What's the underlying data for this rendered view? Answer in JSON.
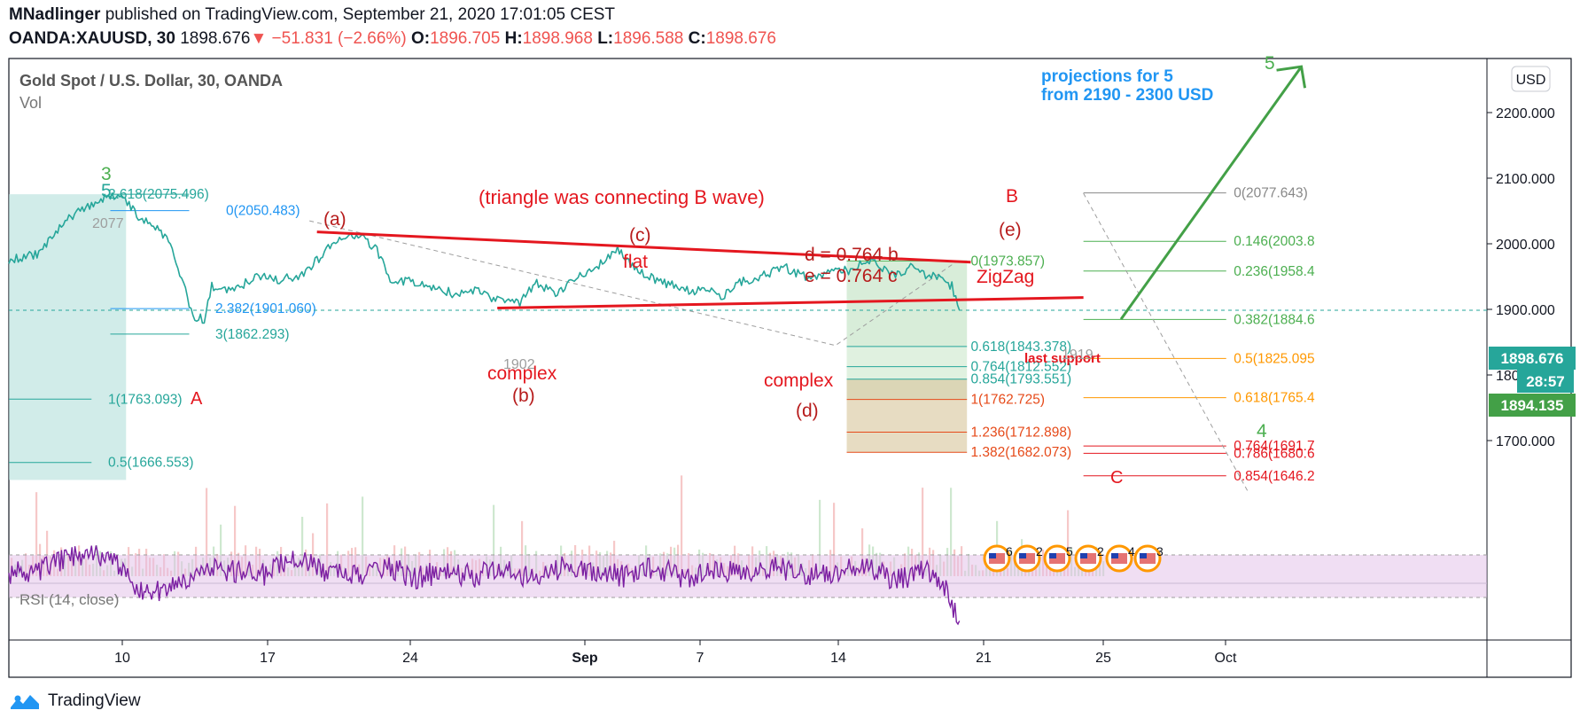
{
  "header": {
    "author": "MNadlinger",
    "published_text": "published on TradingView.com, September 21, 2020 17:01:05 CEST",
    "symbol": "OANDA:XAUUSD, 30",
    "last": "1898.676",
    "change": "−51.831 (−2.66%)",
    "o_label": "O:",
    "o_val": "1896.705",
    "h_label": "H:",
    "h_val": "1898.968",
    "l_label": "L:",
    "l_val": "1896.588",
    "c_label": "C:",
    "c_val": "1898.676"
  },
  "legend": {
    "title": "Gold Spot / U.S. Dollar, 30, OANDA",
    "vol": "Vol",
    "rsi": "RSI (14, close)"
  },
  "currency_button": "USD",
  "price_tags": {
    "current": "1898.676",
    "countdown": "28:57",
    "other": "1894.135"
  },
  "footer": {
    "brand": "TradingView"
  },
  "colors": {
    "red": "#e4171f",
    "green": "#4caf50",
    "teal": "#26a69a",
    "blue": "#2196f3",
    "orange": "#ff9800",
    "rsi": "#7b1fa2"
  },
  "chart_data": {
    "type": "line",
    "title": "Gold Spot / U.S. Dollar, 30, OANDA",
    "x_ticks": [
      "10",
      "17",
      "24",
      "Sep",
      "7",
      "14",
      "21",
      "25",
      "Oct"
    ],
    "y_ticks": [
      2200,
      2100,
      2000,
      1900,
      1800,
      1700
    ],
    "y_tick_labels": [
      "2200.000",
      "2100.000",
      "2000.000",
      "1900.000",
      "1800.000",
      "1700.000"
    ],
    "ylim": [
      1612,
      2290
    ],
    "price": [
      [
        0,
        1975
      ],
      [
        4,
        1985
      ],
      [
        7,
        2030
      ],
      [
        10,
        2055
      ],
      [
        13,
        2070
      ],
      [
        15,
        2076
      ],
      [
        16,
        2060
      ],
      [
        17.5,
        2035
      ],
      [
        19,
        2030
      ],
      [
        21,
        2010
      ],
      [
        23,
        1950
      ],
      [
        24.5,
        1890
      ],
      [
        26,
        1885
      ],
      [
        27,
        1935
      ],
      [
        30,
        1930
      ],
      [
        33,
        1950
      ],
      [
        36,
        1945
      ],
      [
        39,
        1952
      ],
      [
        41,
        1975
      ],
      [
        43,
        2000
      ],
      [
        45,
        2015
      ],
      [
        47,
        2010
      ],
      [
        49,
        1990
      ],
      [
        51,
        1940
      ],
      [
        53,
        1945
      ],
      [
        56,
        1935
      ],
      [
        59,
        1925
      ],
      [
        62,
        1930
      ],
      [
        65,
        1915
      ],
      [
        68,
        1910
      ],
      [
        70,
        1940
      ],
      [
        73,
        1925
      ],
      [
        76,
        1952
      ],
      [
        79,
        1970
      ],
      [
        81,
        1990
      ],
      [
        83,
        1965
      ],
      [
        85,
        1950
      ],
      [
        87,
        1940
      ],
      [
        89,
        1935
      ],
      [
        91,
        1928
      ],
      [
        93,
        1930
      ],
      [
        95,
        1920
      ],
      [
        97,
        1940
      ],
      [
        100,
        1950
      ],
      [
        103,
        1965
      ],
      [
        106,
        1950
      ],
      [
        109,
        1955
      ],
      [
        112,
        1960
      ],
      [
        114,
        1975
      ],
      [
        116,
        1965
      ],
      [
        118,
        1950
      ],
      [
        120,
        1965
      ],
      [
        122,
        1952
      ],
      [
        124,
        1948
      ],
      [
        125.5,
        1935
      ],
      [
        126.5,
        1898.676
      ]
    ],
    "rsi": [
      [
        0,
        52
      ],
      [
        5,
        58
      ],
      [
        10,
        72
      ],
      [
        14,
        62
      ],
      [
        18,
        32
      ],
      [
        22,
        40
      ],
      [
        26,
        60
      ],
      [
        30,
        55
      ],
      [
        34,
        52
      ],
      [
        38,
        70
      ],
      [
        42,
        52
      ],
      [
        46,
        50
      ],
      [
        50,
        60
      ],
      [
        54,
        48
      ],
      [
        58,
        55
      ],
      [
        62,
        50
      ],
      [
        66,
        60
      ],
      [
        70,
        45
      ],
      [
        74,
        60
      ],
      [
        78,
        55
      ],
      [
        82,
        50
      ],
      [
        86,
        58
      ],
      [
        90,
        48
      ],
      [
        94,
        55
      ],
      [
        98,
        52
      ],
      [
        102,
        60
      ],
      [
        106,
        50
      ],
      [
        110,
        55
      ],
      [
        114,
        62
      ],
      [
        118,
        45
      ],
      [
        122,
        55
      ],
      [
        124.5,
        40
      ],
      [
        126.5,
        8
      ]
    ],
    "trendlines": {
      "upper": [
        [
          41,
          2018
        ],
        [
          128,
          1972
        ]
      ],
      "lower": [
        [
          65,
          1902
        ],
        [
          143,
          1918
        ]
      ],
      "projection_arrow": [
        [
          148,
          1885
        ],
        [
          172,
          2270
        ]
      ]
    },
    "fib_left": [
      {
        "label": "2.618(2075.496)",
        "price": 2075.5
      },
      {
        "label": "0(2050.483)",
        "price": 2050.5
      },
      {
        "label": "2.382(1901.060)",
        "price": 1901.1
      },
      {
        "label": "3(1862.293)",
        "price": 1862.3
      },
      {
        "label": "1(1763.093)",
        "price": 1763.1
      },
      {
        "label": "0.5(1666.553)",
        "price": 1666.6
      }
    ],
    "fib_mid": [
      {
        "label": "0(1973.857)",
        "price": 1973.9
      },
      {
        "label": "0.618(1843.378)",
        "price": 1843.4
      },
      {
        "label": "0.764(1812.552)",
        "price": 1812.6
      },
      {
        "label": "0.854(1793.551)",
        "price": 1793.6
      },
      {
        "label": "1(1762.725)",
        "price": 1762.7
      },
      {
        "label": "1.236(1712.898)",
        "price": 1712.9
      },
      {
        "label": "1.382(1682.073)",
        "price": 1682.1
      }
    ],
    "fib_right": [
      {
        "label": "0(2077.643)",
        "price": 2077.6
      },
      {
        "label": "0.146(2003.8",
        "price": 2003.8
      },
      {
        "label": "0.236(1958.4",
        "price": 1958.4
      },
      {
        "label": "0.382(1884.6",
        "price": 1884.6
      },
      {
        "label": "0.5(1825.095",
        "price": 1825.1
      },
      {
        "label": "0.618(1765.4",
        "price": 1765.4
      },
      {
        "label": "0.764(1691.7",
        "price": 1691.7
      },
      {
        "label": "0.786(1680.6",
        "price": 1680.6
      },
      {
        "label": "0.854(1646.2",
        "price": 1646.2
      }
    ],
    "annotations": {
      "projection_l1": "projections for 5",
      "projection_l2": "from 2190 - 2300 USD",
      "triangle_note": "(triangle was connecting B wave)",
      "a_wave": "(a)",
      "b_wave": "(b)",
      "c_wave": "(c)",
      "d_wave": "(d)",
      "e_wave": "(e)",
      "flat": "flat",
      "complex_b": "complex",
      "complex_d": "complex",
      "ratio_d": "d = 0.764 b",
      "ratio_e": "e = 0.764 c",
      "zigzag": "ZigZag",
      "big_b": "B",
      "big_a": "A",
      "big_c": "C",
      "wave3": "3",
      "wave5_small": "5",
      "wave5_top": "5",
      "wave4": "4",
      "last_support": "last support",
      "p2077": "2077",
      "p1902": "1902",
      "p1919": "1919"
    },
    "event_labels": [
      "6",
      "2",
      "5",
      "2",
      "4",
      "3"
    ]
  }
}
